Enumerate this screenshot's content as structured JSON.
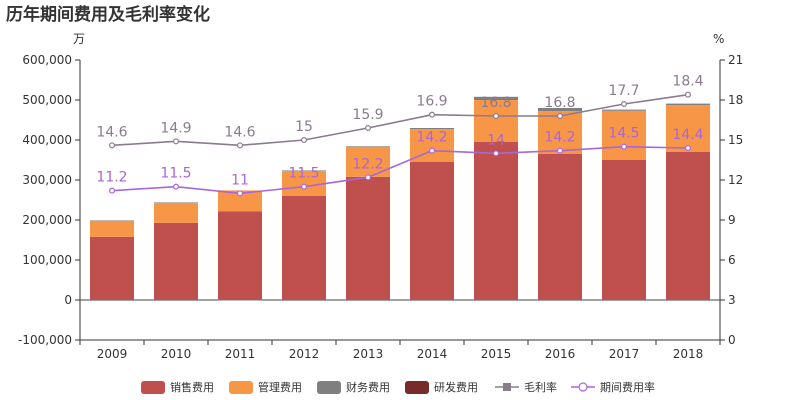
{
  "title": "历年期间费用及毛利率变化",
  "chart_data": {
    "type": "bar",
    "stacked": true,
    "categories": [
      "2009",
      "2010",
      "2011",
      "2012",
      "2013",
      "2014",
      "2015",
      "2016",
      "2017",
      "2018"
    ],
    "left_axis": {
      "unit": "万",
      "min": -100000,
      "max": 600000,
      "ticks": [
        -100000,
        0,
        100000,
        200000,
        300000,
        400000,
        500000,
        600000
      ],
      "tick_labels": [
        "-100,000",
        "0",
        "100,000",
        "200,000",
        "300,000",
        "400,000",
        "500,000",
        "600,000"
      ]
    },
    "right_axis": {
      "unit": "%",
      "min": 0,
      "max": 21,
      "ticks": [
        0,
        3,
        6,
        9,
        12,
        15,
        18,
        21
      ],
      "tick_labels": [
        "0",
        "3",
        "6",
        "9",
        "12",
        "15",
        "18",
        "21"
      ]
    },
    "series": [
      {
        "name": "销售费用",
        "type": "bar",
        "color": "#c0504d",
        "values": [
          158000,
          193000,
          222000,
          260000,
          308000,
          345000,
          395000,
          365000,
          350000,
          370000
        ]
      },
      {
        "name": "管理费用",
        "type": "bar",
        "color": "#f79646",
        "values": [
          40000,
          50000,
          52000,
          63000,
          75000,
          82000,
          105000,
          107000,
          123000,
          117000
        ]
      },
      {
        "name": "财务费用",
        "type": "bar",
        "color": "#7f7f7f",
        "values": [
          1000,
          1000,
          -1000,
          1000,
          1500,
          3000,
          8000,
          8000,
          3000,
          4000
        ]
      },
      {
        "name": "研发费用",
        "type": "bar",
        "color": "#772c2a",
        "values": [
          0,
          0,
          0,
          0,
          0,
          0,
          0,
          0,
          0,
          0
        ]
      },
      {
        "name": "毛利率",
        "type": "line",
        "axis": "right",
        "color": "#8c7a8f",
        "values": [
          14.6,
          14.9,
          14.6,
          15,
          15.9,
          16.9,
          16.8,
          16.8,
          17.7,
          18.4
        ],
        "labels": [
          "14.6",
          "14.9",
          "14.6",
          "15",
          "15.9",
          "16.9",
          "16.8",
          "16.8",
          "17.7",
          "18.4"
        ]
      },
      {
        "name": "期间费用率",
        "type": "line",
        "axis": "right",
        "color": "#a866db",
        "values": [
          11.2,
          11.5,
          11,
          11.5,
          12.2,
          14.2,
          14,
          14.2,
          14.5,
          14.4
        ],
        "labels": [
          "11.2",
          "11.5",
          "11",
          "11.5",
          "12.2",
          "14.2",
          "14",
          "14.2",
          "14.5",
          "14.4"
        ]
      }
    ],
    "legend": "bottom",
    "grid": false
  }
}
